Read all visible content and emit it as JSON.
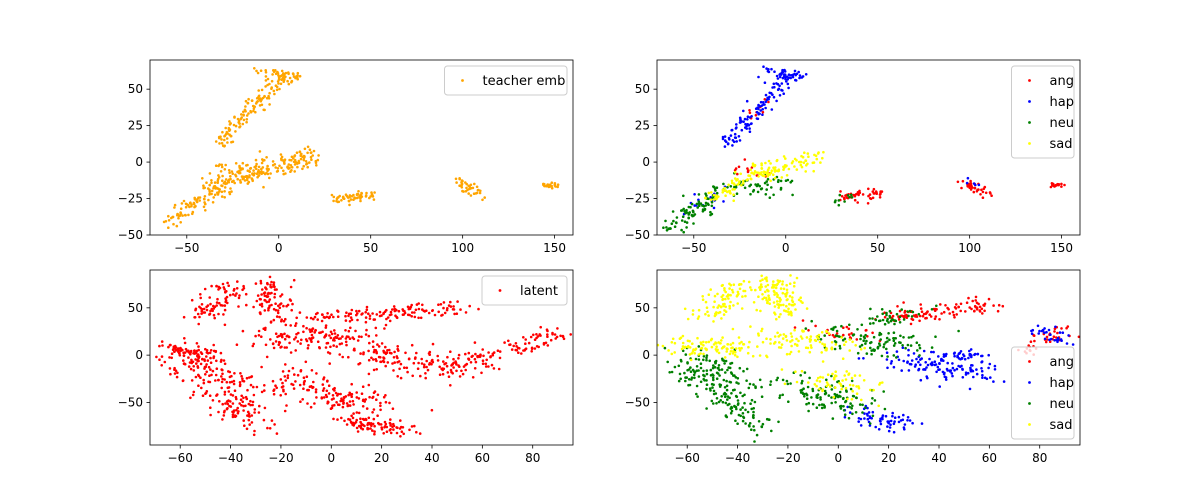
{
  "chart_data": [
    {
      "type": "scatter",
      "xlim": [
        -70,
        160
      ],
      "ylim": [
        -50,
        70
      ],
      "xticks": [
        -50,
        0,
        50,
        100,
        150
      ],
      "yticks": [
        -50,
        -25,
        0,
        25,
        50
      ],
      "grid": false,
      "legend_position": "top-right",
      "series": [
        {
          "name": "teacher emb",
          "color": "#ffa500",
          "clusters": [
            {
              "from": [
                -63,
                -42
              ],
              "to": [
                -28,
                -15
              ],
              "n": 90,
              "spread": 3.5
            },
            {
              "from": [
                -36,
                -15
              ],
              "to": [
                20,
                4
              ],
              "n": 190,
              "spread": 3.5
            },
            {
              "from": [
                -33,
                12
              ],
              "to": [
                3,
                60
              ],
              "n": 130,
              "spread": 2.8
            },
            {
              "from": [
                -10,
                62
              ],
              "to": [
                10,
                58
              ],
              "n": 40,
              "spread": 2.0
            },
            {
              "from": [
                -32,
                -3
              ],
              "to": [
                -12,
                -8
              ],
              "n": 30,
              "spread": 2.5
            },
            {
              "from": [
                29,
                -25
              ],
              "to": [
                51,
                -22
              ],
              "n": 55,
              "spread": 2.0
            },
            {
              "from": [
                97,
                -13
              ],
              "to": [
                109,
                -21
              ],
              "n": 40,
              "spread": 1.8
            },
            {
              "from": [
                143,
                -16
              ],
              "to": [
                151,
                -16
              ],
              "n": 22,
              "spread": 1.0
            }
          ]
        }
      ]
    },
    {
      "type": "scatter",
      "xlim": [
        -70,
        160
      ],
      "ylim": [
        -50,
        70
      ],
      "xticks": [
        -50,
        0,
        50,
        100,
        150
      ],
      "yticks": [
        -50,
        -25,
        0,
        25,
        50
      ],
      "grid": false,
      "legend_position": "top-right",
      "series": [
        {
          "name": "ang",
          "color": "#ff0000",
          "clusters": [
            {
              "from": [
                29,
                -25
              ],
              "to": [
                51,
                -22
              ],
              "n": 45,
              "spread": 2.0
            },
            {
              "from": [
                97,
                -14
              ],
              "to": [
                109,
                -21
              ],
              "n": 35,
              "spread": 1.8
            },
            {
              "from": [
                143,
                -16
              ],
              "to": [
                151,
                -16
              ],
              "n": 18,
              "spread": 1.0
            },
            {
              "from": [
                -30,
                -2
              ],
              "to": [
                -12,
                -8
              ],
              "n": 15,
              "spread": 2.5
            },
            {
              "from": [
                -20,
                30
              ],
              "to": [
                -10,
                42
              ],
              "n": 10,
              "spread": 2.0
            }
          ]
        },
        {
          "name": "hap",
          "color": "#0000ff",
          "clusters": [
            {
              "from": [
                -33,
                12
              ],
              "to": [
                3,
                60
              ],
              "n": 110,
              "spread": 2.8
            },
            {
              "from": [
                -10,
                62
              ],
              "to": [
                10,
                58
              ],
              "n": 40,
              "spread": 2.0
            },
            {
              "from": [
                -58,
                -35
              ],
              "to": [
                -35,
                -20
              ],
              "n": 15,
              "spread": 3.0
            },
            {
              "from": [
                99,
                -12
              ],
              "to": [
                104,
                -15
              ],
              "n": 5,
              "spread": 1.0
            }
          ]
        },
        {
          "name": "neu",
          "color": "#008000",
          "clusters": [
            {
              "from": [
                -63,
                -45
              ],
              "to": [
                -40,
                -25
              ],
              "n": 80,
              "spread": 3.5
            },
            {
              "from": [
                -38,
                -18
              ],
              "to": [
                0,
                -15
              ],
              "n": 60,
              "spread": 3.5
            },
            {
              "from": [
                28,
                -28
              ],
              "to": [
                35,
                -22
              ],
              "n": 10,
              "spread": 1.5
            }
          ]
        },
        {
          "name": "sad",
          "color": "#ffff00",
          "clusters": [
            {
              "from": [
                -40,
                -25
              ],
              "to": [
                -25,
                -15
              ],
              "n": 40,
              "spread": 3.0
            },
            {
              "from": [
                -25,
                -12
              ],
              "to": [
                20,
                4
              ],
              "n": 110,
              "spread": 3.0
            }
          ]
        }
      ]
    },
    {
      "type": "scatter",
      "xlim": [
        -72,
        96
      ],
      "ylim": [
        -95,
        90
      ],
      "xticks": [
        -60,
        -40,
        -20,
        0,
        20,
        40,
        60,
        80
      ],
      "yticks": [
        -50,
        0,
        50
      ],
      "grid": false,
      "legend_position": "top-right",
      "series": [
        {
          "name": "latent",
          "color": "#ff0000",
          "clusters": [
            {
              "from": [
                -60,
                5
              ],
              "to": [
                -40,
                -35
              ],
              "n": 160,
              "spread": 7
            },
            {
              "from": [
                -50,
                40
              ],
              "to": [
                -40,
                75
              ],
              "n": 80,
              "spread": 4
            },
            {
              "from": [
                -25,
                80
              ],
              "to": [
                -20,
                35
              ],
              "n": 90,
              "spread": 4
            },
            {
              "from": [
                -25,
                20
              ],
              "to": [
                15,
                15
              ],
              "n": 150,
              "spread": 8
            },
            {
              "from": [
                -45,
                -40
              ],
              "to": [
                -30,
                -75
              ],
              "n": 90,
              "spread": 5
            },
            {
              "from": [
                -20,
                -25
              ],
              "to": [
                15,
                -55
              ],
              "n": 150,
              "spread": 8
            },
            {
              "from": [
                5,
                -70
              ],
              "to": [
                30,
                -78
              ],
              "n": 90,
              "spread": 4
            },
            {
              "from": [
                -5,
                40
              ],
              "to": [
                55,
                50
              ],
              "n": 130,
              "spread": 4
            },
            {
              "from": [
                15,
                0
              ],
              "to": [
                55,
                -15
              ],
              "n": 140,
              "spread": 7
            },
            {
              "from": [
                55,
                0
              ],
              "to": [
                62,
                0
              ],
              "n": 30,
              "spread": 4
            },
            {
              "from": [
                72,
                5
              ],
              "to": [
                90,
                25
              ],
              "n": 60,
              "spread": 4
            },
            {
              "from": [
                -65,
                10
              ],
              "to": [
                -50,
                0
              ],
              "n": 40,
              "spread": 3
            }
          ]
        }
      ]
    },
    {
      "type": "scatter",
      "xlim": [
        -72,
        96
      ],
      "ylim": [
        -95,
        90
      ],
      "xticks": [
        -60,
        -40,
        -20,
        0,
        20,
        40,
        60,
        80
      ],
      "yticks": [
        -50,
        0,
        50
      ],
      "grid": false,
      "legend_position": "bottom-right",
      "series": [
        {
          "name": "ang",
          "color": "#ff0000",
          "clusters": [
            {
              "from": [
                20,
                40
              ],
              "to": [
                60,
                52
              ],
              "n": 110,
              "spread": 4
            },
            {
              "from": [
                72,
                5
              ],
              "to": [
                90,
                25
              ],
              "n": 40,
              "spread": 4
            },
            {
              "from": [
                -10,
                25
              ],
              "to": [
                10,
                20
              ],
              "n": 25,
              "spread": 5
            }
          ]
        },
        {
          "name": "hap",
          "color": "#0000ff",
          "clusters": [
            {
              "from": [
                25,
                -5
              ],
              "to": [
                55,
                -20
              ],
              "n": 120,
              "spread": 6
            },
            {
              "from": [
                5,
                -60
              ],
              "to": [
                25,
                -75
              ],
              "n": 60,
              "spread": 5
            },
            {
              "from": [
                40,
                -2
              ],
              "to": [
                58,
                0
              ],
              "n": 35,
              "spread": 3
            },
            {
              "from": [
                78,
                30
              ],
              "to": [
                90,
                15
              ],
              "n": 30,
              "spread": 3
            }
          ]
        },
        {
          "name": "neu",
          "color": "#008000",
          "clusters": [
            {
              "from": [
                -60,
                0
              ],
              "to": [
                -40,
                -40
              ],
              "n": 140,
              "spread": 7
            },
            {
              "from": [
                -45,
                -45
              ],
              "to": [
                -30,
                -78
              ],
              "n": 80,
              "spread": 5
            },
            {
              "from": [
                -20,
                -30
              ],
              "to": [
                10,
                -55
              ],
              "n": 120,
              "spread": 8
            },
            {
              "from": [
                -5,
                20
              ],
              "to": [
                35,
                10
              ],
              "n": 100,
              "spread": 7
            },
            {
              "from": [
                15,
                35
              ],
              "to": [
                30,
                45
              ],
              "n": 40,
              "spread": 4
            }
          ]
        },
        {
          "name": "sad",
          "color": "#ffff00",
          "clusters": [
            {
              "from": [
                -50,
                40
              ],
              "to": [
                -40,
                75
              ],
              "n": 90,
              "spread": 5
            },
            {
              "from": [
                -25,
                80
              ],
              "to": [
                -20,
                40
              ],
              "n": 110,
              "spread": 4
            },
            {
              "from": [
                -65,
                10
              ],
              "to": [
                -35,
                5
              ],
              "n": 100,
              "spread": 6
            },
            {
              "from": [
                -30,
                20
              ],
              "to": [
                0,
                10
              ],
              "n": 90,
              "spread": 7
            },
            {
              "from": [
                -10,
                -20
              ],
              "to": [
                10,
                -40
              ],
              "n": 60,
              "spread": 7
            }
          ]
        }
      ]
    }
  ]
}
